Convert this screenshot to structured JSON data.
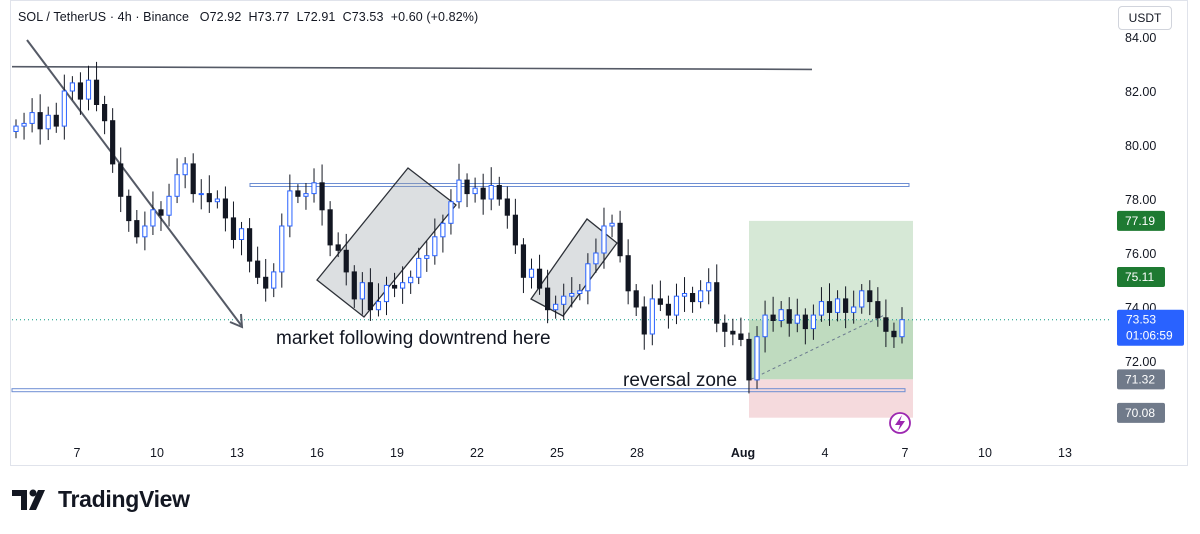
{
  "header": {
    "symbol": "SOL / TetherUS · 4h · Binance",
    "open": "O72.92",
    "high": "H73.77",
    "low": "L72.91",
    "close": "C73.53",
    "change": "+0.60 (+0.82%)"
  },
  "currency_button": "USDT",
  "brand": "TradingView",
  "colors": {
    "up": "#089981",
    "down": "#f23645",
    "candle": "#131722",
    "trendline": "#555a66",
    "hline": "#6d8ed3",
    "target_zone": "#cfe4cf",
    "stop_zone": "#f4d6d9",
    "badge_green": "#1e7a32",
    "badge_gray": "#707a8a",
    "badge_blue": "#2962ff"
  },
  "chart_data": {
    "type": "candlestick",
    "y_axis": {
      "range": [
        68.5,
        84.6
      ],
      "ticks": [
        "84.00",
        "82.00",
        "80.00",
        "78.00",
        "76.00",
        "74.00",
        "72.00"
      ]
    },
    "x_axis": {
      "ticks": [
        "7",
        "10",
        "13",
        "16",
        "19",
        "22",
        "25",
        "28",
        "Aug",
        "4",
        "7",
        "10",
        "13"
      ]
    },
    "close_series": [
      80.7,
      80.8,
      81.2,
      80.6,
      81.1,
      80.7,
      82.0,
      82.3,
      81.7,
      82.4,
      81.5,
      80.9,
      79.3,
      78.1,
      77.2,
      76.6,
      77.0,
      77.6,
      77.4,
      78.1,
      78.9,
      79.3,
      78.2,
      78.2,
      77.9,
      78.0,
      77.3,
      76.5,
      76.9,
      75.7,
      75.1,
      74.7,
      75.3,
      77.0,
      78.3,
      78.1,
      78.2,
      78.6,
      77.6,
      76.3,
      76.1,
      75.3,
      74.3,
      74.9,
      73.9,
      74.2,
      74.8,
      74.7,
      74.9,
      75.1,
      75.8,
      75.9,
      76.6,
      77.1,
      77.9,
      78.7,
      78.2,
      78.4,
      78.0,
      78.5,
      78.0,
      77.4,
      76.3,
      75.1,
      75.4,
      74.7,
      73.9,
      74.1,
      74.4,
      74.5,
      74.6,
      75.6,
      76.0,
      77.0,
      77.1,
      75.9,
      74.6,
      74.0,
      73.0,
      74.3,
      74.1,
      73.7,
      74.4,
      74.5,
      74.2,
      74.6,
      74.9,
      73.4,
      73.1,
      73.0,
      72.8,
      71.3,
      72.9,
      73.7,
      73.5,
      73.9,
      73.4,
      73.7,
      73.2,
      73.7,
      74.2,
      73.8,
      74.3,
      73.8,
      74.0,
      74.6,
      74.2,
      73.6,
      73.1,
      72.9,
      73.53
    ],
    "annotations": [
      "market following downtrend here",
      "reversal zone"
    ],
    "levels": {
      "resistance": 78.5,
      "support": 70.9,
      "upper_trendline": [
        82.9,
        82.8
      ],
      "long_position": {
        "entry": 73.53,
        "target": 77.19,
        "stop": 71.32
      }
    },
    "price_badges": [
      {
        "label": "77.19",
        "style": "green"
      },
      {
        "label": "75.11",
        "style": "green"
      },
      {
        "label": "73.53",
        "sublabel": "01:06:59",
        "style": "blue"
      },
      {
        "label": "71.32",
        "style": "gray"
      },
      {
        "label": "70.08",
        "style": "gray"
      }
    ]
  }
}
